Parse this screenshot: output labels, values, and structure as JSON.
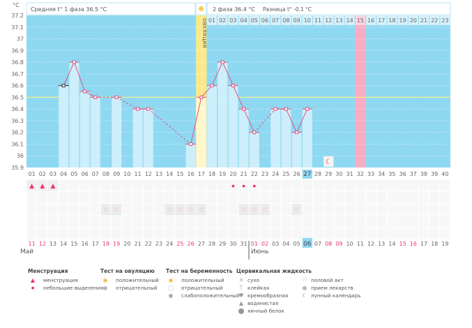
{
  "header": {
    "unit": "°C",
    "phase1_text": "Средняя t° 1 фаза 36.5 °C",
    "phase2_text": "2 фаза 36.4 °C",
    "diff_text": "Разница t° -0.1 °C",
    "ovulation_label": "ОВУЛЯЦИЯ"
  },
  "colors": {
    "chart_bg": "#8fd8f2",
    "bar": "#cdeefb",
    "line": "#e0557f",
    "ovulation": "#fbe98a",
    "pink_day": "#f7adc4",
    "coverline": "#f4ec8a",
    "red_text": "#e8336a"
  },
  "chart_data": {
    "type": "line",
    "title": "",
    "ylabel": "°C",
    "ylim": [
      35.9,
      37.2
    ],
    "yticks": [
      "37.2",
      "37.1",
      "37",
      "36.9",
      "36.8",
      "36.7",
      "36.6",
      "36.5",
      "36.4",
      "36.3",
      "36.2",
      "36.1",
      "36",
      "35.9"
    ],
    "coverline": 36.5,
    "cycle_days": [
      "01",
      "02",
      "03",
      "04",
      "05",
      "06",
      "07",
      "08",
      "09",
      "10",
      "11",
      "12",
      "13",
      "14",
      "15",
      "16",
      "17",
      "18",
      "19",
      "20",
      "21",
      "22",
      "23",
      "24",
      "25",
      "26",
      "27",
      "28",
      "29",
      "30",
      "31",
      "32",
      "33",
      "34",
      "35",
      "36",
      "37",
      "38",
      "39",
      "40"
    ],
    "second_phase_days": [
      "01",
      "02",
      "03",
      "04",
      "05",
      "06",
      "07",
      "08",
      "09",
      "10",
      "11",
      "12",
      "13",
      "14",
      "15",
      "16",
      "17",
      "18",
      "19",
      "20",
      "21",
      "22",
      "23"
    ],
    "temperatures": [
      {
        "day": 4,
        "value": 36.6
      },
      {
        "day": 5,
        "value": 36.8
      },
      {
        "day": 6,
        "value": 36.55
      },
      {
        "day": 7,
        "value": 36.5
      },
      {
        "day": 9,
        "value": 36.5
      },
      {
        "day": 11,
        "value": 36.4
      },
      {
        "day": 12,
        "value": 36.4
      },
      {
        "day": 16,
        "value": 36.1
      },
      {
        "day": 17,
        "value": 36.5
      },
      {
        "day": 18,
        "value": 36.6
      },
      {
        "day": 19,
        "value": 36.8
      },
      {
        "day": 20,
        "value": 36.6
      },
      {
        "day": 21,
        "value": 36.4
      },
      {
        "day": 22,
        "value": 36.2
      },
      {
        "day": 24,
        "value": 36.4
      },
      {
        "day": 25,
        "value": 36.4
      },
      {
        "day": 26,
        "value": 36.2
      },
      {
        "day": 27,
        "value": 36.4
      }
    ],
    "ovulation_day": 17,
    "today_day": 27,
    "expected_period_day": 32,
    "moon_day": 29,
    "menstruation_days": [
      1,
      2,
      3
    ],
    "spotting_days": [
      20,
      21,
      22
    ],
    "intercourse_days": [
      8,
      9,
      14,
      15,
      16,
      17,
      21,
      22,
      23,
      26
    ],
    "dates": [
      "11",
      "12",
      "13",
      "14",
      "15",
      "16",
      "17",
      "18",
      "19",
      "20",
      "21",
      "22",
      "23",
      "24",
      "25",
      "26",
      "27",
      "28",
      "29",
      "30",
      "31",
      "01",
      "02",
      "03",
      "04",
      "05",
      "06",
      "07",
      "08",
      "09",
      "10",
      "11",
      "12",
      "13",
      "14",
      "15",
      "16",
      "17",
      "18",
      "19"
    ],
    "red_date_indices": [
      0,
      1,
      7,
      8,
      14,
      15,
      21,
      22,
      28,
      29,
      35,
      36
    ]
  },
  "months": {
    "first": "Май",
    "second": "Июнь"
  },
  "legend": {
    "menstruation": {
      "title": "Менструация",
      "items": [
        "менструация",
        "небольшие выделения"
      ]
    },
    "ovulation_test": {
      "title": "Тест на овуляцию",
      "items": [
        "положительный",
        "отрицательный"
      ]
    },
    "pregnancy_test": {
      "title": "Тест на беременность",
      "items": [
        "положительный",
        "отрицательный",
        "слабоположительный"
      ]
    },
    "cervical": {
      "title": "Цервикальная жидкость",
      "items": [
        "сухо",
        "клейкая",
        "кремообразная",
        "водянистая",
        "яичный белок"
      ]
    },
    "other": {
      "items": [
        "половой акт",
        "прием лекарств",
        "лунный календарь"
      ]
    }
  }
}
